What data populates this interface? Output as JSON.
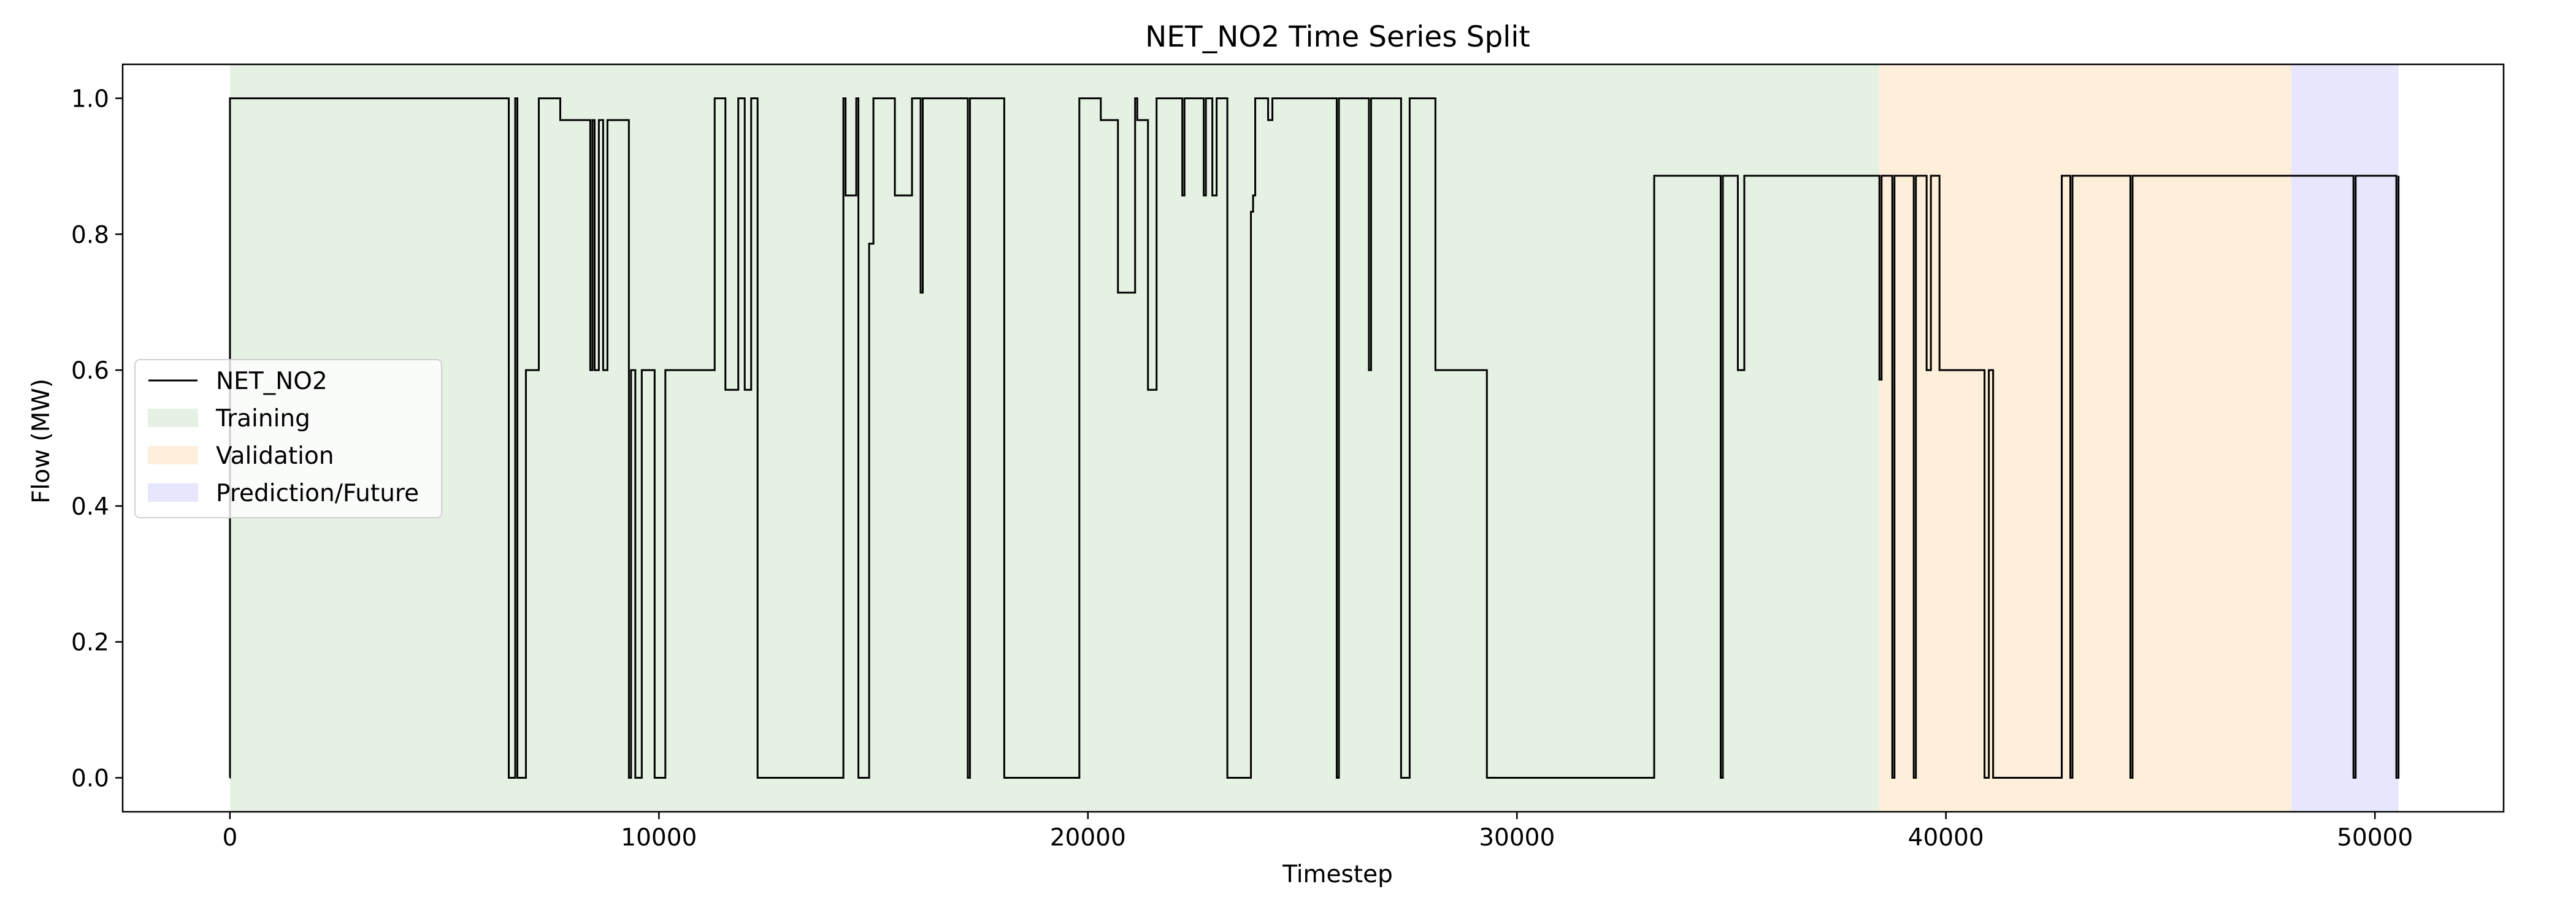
{
  "chart_data": {
    "type": "line",
    "title": "NET_NO2 Time Series Split",
    "xlabel": "Timestep",
    "ylabel": "Flow (MW)",
    "xlim": [
      -2500,
      53000
    ],
    "ylim": [
      -0.05,
      1.05
    ],
    "xticks": [
      0,
      10000,
      20000,
      30000,
      40000,
      50000
    ],
    "yticks": [
      0.0,
      0.2,
      0.4,
      0.6,
      0.8,
      1.0
    ],
    "xtick_labels": [
      "0",
      "10000",
      "20000",
      "30000",
      "40000",
      "50000"
    ],
    "ytick_labels": [
      "0.0",
      "0.2",
      "0.4",
      "0.6",
      "0.8",
      "1.0"
    ],
    "legend_position": "center-left",
    "regions": [
      {
        "name": "Training",
        "start": 0,
        "end": 38450,
        "color": "#e5f1e3"
      },
      {
        "name": "Validation",
        "start": 38450,
        "end": 48050,
        "color": "#fdefd9"
      },
      {
        "name": "Prediction/Future",
        "start": 48050,
        "end": 50550,
        "color": "#e6e6fd"
      }
    ],
    "series": [
      {
        "name": "NET_NO2",
        "color": "#000000",
        "step": true,
        "x": [
          0,
          1,
          6500,
          6650,
          6700,
          6900,
          7200,
          7700,
          8000,
          8400,
          8450,
          8500,
          8600,
          8700,
          8800,
          9300,
          9350,
          9450,
          9600,
          9900,
          10150,
          11300,
          11550,
          11850,
          12000,
          12150,
          12300,
          14300,
          14350,
          14600,
          14650,
          14900,
          15000,
          15500,
          15900,
          16100,
          16150,
          17200,
          17250,
          18050,
          19700,
          19800,
          20300,
          20700,
          21100,
          21150,
          21400,
          21600,
          22200,
          22250,
          22700,
          22750,
          22900,
          23000,
          23250,
          23800,
          23850,
          23900,
          24200,
          24300,
          25800,
          25850,
          26550,
          26600,
          27300,
          27500,
          28100,
          29300,
          33200,
          34750,
          34800,
          35150,
          35300,
          38450,
          38500,
          38750,
          38800,
          39250,
          39300,
          39550,
          39650,
          39850,
          40900,
          41000,
          41100,
          42700,
          42900,
          42950,
          44300,
          44350,
          49500,
          49550,
          50500,
          50550
        ],
        "y": [
          0.0,
          1.0,
          0.0,
          1.0,
          0.0,
          0.6,
          1.0,
          0.968,
          0.968,
          0.6,
          0.968,
          0.6,
          0.968,
          0.6,
          0.968,
          0.0,
          0.6,
          0.0,
          0.6,
          0.0,
          0.6,
          1.0,
          0.571,
          1.0,
          0.571,
          1.0,
          0.0,
          1.0,
          0.857,
          1.0,
          0.0,
          0.786,
          1.0,
          0.857,
          1.0,
          0.714,
          1.0,
          0.0,
          1.0,
          0.0,
          0.0,
          1.0,
          0.968,
          0.714,
          1.0,
          0.968,
          0.571,
          1.0,
          0.857,
          1.0,
          0.857,
          1.0,
          0.857,
          1.0,
          0.0,
          0.833,
          0.857,
          1.0,
          0.968,
          1.0,
          0.0,
          1.0,
          0.6,
          1.0,
          0.0,
          1.0,
          0.6,
          0.0,
          0.886,
          0.0,
          0.886,
          0.6,
          0.886,
          0.586,
          0.886,
          0.0,
          0.886,
          0.0,
          0.886,
          0.6,
          0.886,
          0.6,
          0.0,
          0.6,
          0.0,
          0.886,
          0.0,
          0.886,
          0.0,
          0.886,
          0.0,
          0.886,
          0.0,
          0.886
        ]
      }
    ]
  }
}
